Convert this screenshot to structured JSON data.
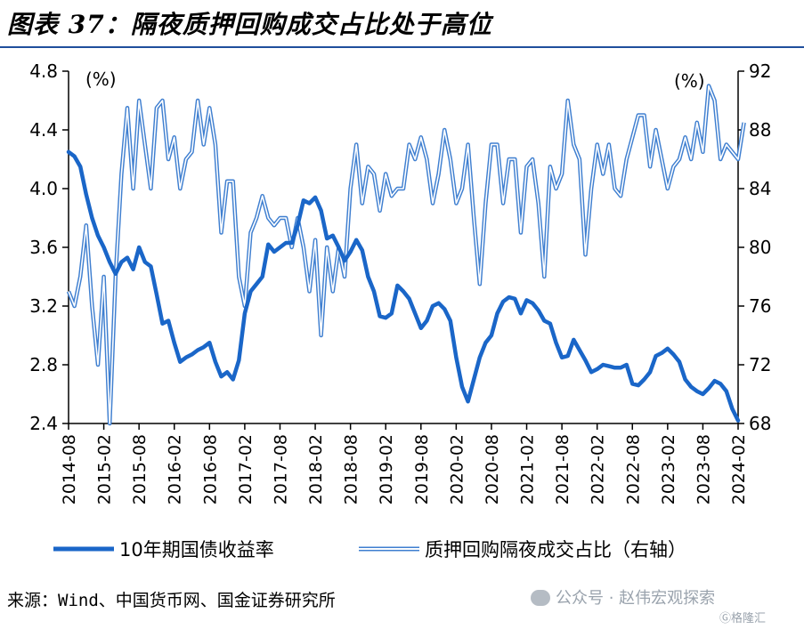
{
  "title": "图表 37：隔夜质押回购成交占比处于高位",
  "source": "来源：Wind、中国货币网、国金证券研究所",
  "watermark": "公众号 · 赵伟宏观探索",
  "watermark_corner": "Ⓖ格隆汇",
  "colors": {
    "series1": "#1a66c8",
    "series2": "#3f7fd0",
    "axis": "#000000"
  },
  "chart_data": {
    "type": "line",
    "left_axis": {
      "unit": "(%)",
      "ylim": [
        2.4,
        4.8
      ],
      "ticks": [
        "2.4",
        "2.8",
        "3.2",
        "3.6",
        "4.0",
        "4.4",
        "4.8"
      ]
    },
    "right_axis": {
      "unit": "(%)",
      "ylim": [
        68,
        92
      ],
      "ticks": [
        "68",
        "72",
        "76",
        "80",
        "84",
        "88",
        "92"
      ]
    },
    "x_tick_labels": [
      "2014-08",
      "2015-02",
      "2015-08",
      "2016-02",
      "2016-08",
      "2017-02",
      "2017-08",
      "2018-02",
      "2018-08",
      "2019-02",
      "2019-08",
      "2020-02",
      "2020-08",
      "2021-02",
      "2021-08",
      "2022-02",
      "2022-08",
      "2023-02",
      "2023-08",
      "2024-02"
    ],
    "x_start": "2014-08",
    "series": [
      {
        "name": "10年期国债收益率",
        "axis": "left",
        "style": "thick",
        "values": [
          4.25,
          4.22,
          4.15,
          3.96,
          3.8,
          3.68,
          3.6,
          3.5,
          3.42,
          3.5,
          3.53,
          3.45,
          3.6,
          3.5,
          3.47,
          3.28,
          3.08,
          3.1,
          2.95,
          2.82,
          2.85,
          2.87,
          2.9,
          2.92,
          2.95,
          2.82,
          2.72,
          2.75,
          2.7,
          2.83,
          3.15,
          3.3,
          3.35,
          3.4,
          3.62,
          3.57,
          3.6,
          3.63,
          3.63,
          3.75,
          3.92,
          3.9,
          3.94,
          3.85,
          3.66,
          3.68,
          3.6,
          3.51,
          3.57,
          3.65,
          3.58,
          3.4,
          3.3,
          3.13,
          3.12,
          3.15,
          3.34,
          3.3,
          3.25,
          3.15,
          3.05,
          3.1,
          3.2,
          3.22,
          3.18,
          3.1,
          2.85,
          2.65,
          2.55,
          2.7,
          2.85,
          2.95,
          3.0,
          3.15,
          3.23,
          3.26,
          3.25,
          3.15,
          3.24,
          3.22,
          3.17,
          3.1,
          3.08,
          2.95,
          2.85,
          2.86,
          2.97,
          2.9,
          2.83,
          2.75,
          2.77,
          2.8,
          2.79,
          2.78,
          2.78,
          2.8,
          2.67,
          2.66,
          2.7,
          2.75,
          2.86,
          2.88,
          2.91,
          2.87,
          2.82,
          2.7,
          2.65,
          2.62,
          2.6,
          2.64,
          2.69,
          2.67,
          2.62,
          2.5,
          2.42
        ]
      },
      {
        "name": "质押回购隔夜成交占比（右轴）",
        "axis": "right",
        "style": "double",
        "values": [
          77.0,
          76.0,
          78.0,
          81.5,
          76.0,
          72.0,
          78.0,
          68.0,
          78.0,
          85.0,
          89.5,
          84.0,
          90.0,
          87.0,
          84.0,
          89.5,
          90.0,
          86.0,
          87.5,
          84.0,
          86.0,
          86.5,
          90.0,
          87.0,
          89.5,
          87.0,
          81.0,
          84.5,
          84.5,
          78.0,
          76.0,
          81.0,
          82.0,
          83.5,
          82.0,
          81.5,
          82.0,
          82.0,
          80.0,
          82.0,
          80.0,
          77.0,
          80.5,
          74.0,
          80.0,
          77.0,
          80.0,
          78.0,
          84.0,
          87.0,
          83.0,
          85.5,
          85.0,
          82.5,
          85.0,
          83.5,
          84.0,
          84.0,
          87.0,
          86.0,
          87.5,
          86.0,
          83.0,
          85.0,
          88.0,
          86.0,
          83.0,
          84.0,
          87.0,
          82.0,
          77.5,
          83.0,
          87.0,
          87.0,
          83.0,
          86.0,
          86.0,
          81.0,
          85.5,
          86.0,
          83.0,
          78.0,
          85.5,
          84.0,
          85.0,
          90.0,
          87.0,
          86.0,
          79.5,
          84.0,
          87.0,
          85.0,
          87.0,
          84.0,
          83.5,
          86.0,
          87.5,
          89.0,
          89.0,
          85.5,
          88.0,
          86.0,
          84.0,
          85.5,
          86.0,
          87.5,
          86.0,
          88.5,
          86.5,
          91.0,
          90.0,
          86.0,
          87.0,
          86.5,
          86.0,
          88.5
        ]
      }
    ],
    "legend_placement": "bottom",
    "grid": false
  }
}
